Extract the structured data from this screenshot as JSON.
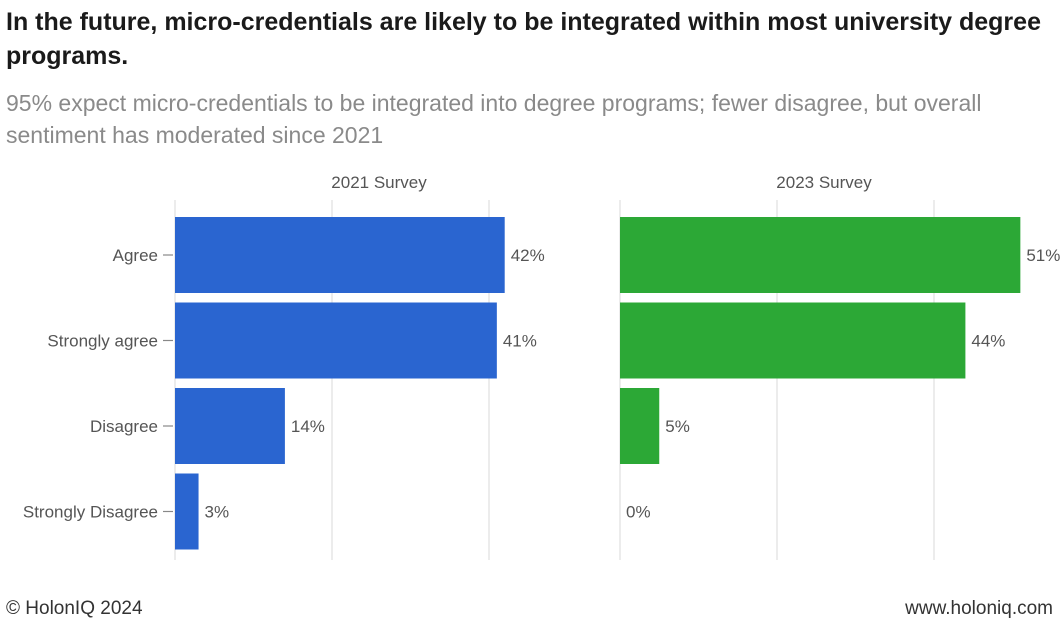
{
  "title": "In the future, micro-credentials are likely to be integrated within most university degree programs.",
  "subtitle": "95% expect micro-credentials to be integrated into degree programs; fewer disagree, but overall sentiment has moderated since 2021",
  "footer": {
    "copyright": "© HolonIQ 2024",
    "website": "www.holoniq.com"
  },
  "colors": {
    "survey_2021": "#2a65d0",
    "survey_2023": "#2ca836"
  },
  "chart_data": {
    "type": "bar",
    "orientation": "horizontal",
    "categories": [
      "Agree",
      "Strongly agree",
      "Disagree",
      "Strongly Disagree"
    ],
    "series": [
      {
        "name": "2021 Survey",
        "values": [
          42,
          41,
          14,
          3
        ],
        "labels": [
          "42%",
          "41%",
          "14%",
          "3%"
        ]
      },
      {
        "name": "2023 Survey",
        "values": [
          51,
          44,
          5,
          0
        ],
        "labels": [
          "51%",
          "44%",
          "5%",
          "0%"
        ]
      }
    ],
    "xlim": [
      0,
      53
    ],
    "gridlines": [
      0,
      20,
      40
    ],
    "grid": true,
    "legend": "none"
  }
}
